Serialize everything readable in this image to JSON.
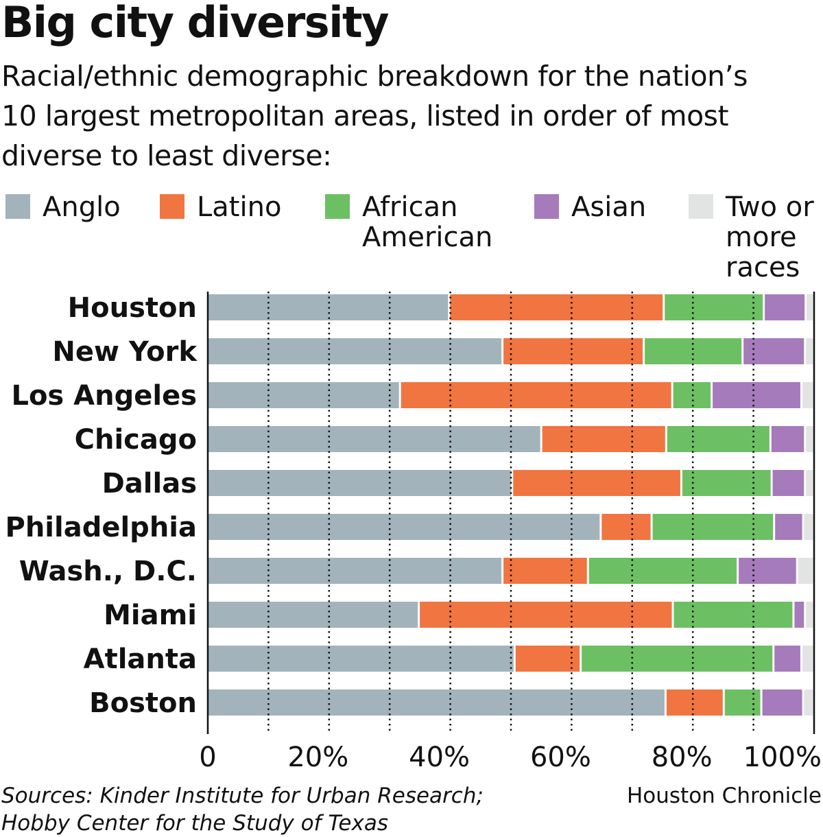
{
  "chart_data": {
    "type": "bar",
    "orientation": "horizontal",
    "stacked": true,
    "title": "Big city diversity",
    "subtitle": "Racial/ethnic demographic breakdown for the nation’s 10 largest metropolitan areas, listed in order of most diverse to least diverse:",
    "categories": [
      "Houston",
      "New York",
      "Los Angeles",
      "Chicago",
      "Dallas",
      "Philadelphia",
      "Wash., D.C.",
      "Miami",
      "Atlanta",
      "Boston"
    ],
    "series": [
      {
        "name": "Anglo",
        "color": "#a3b3bb",
        "values": [
          39.8,
          48.6,
          31.7,
          55.0,
          50.2,
          64.8,
          48.6,
          34.8,
          50.6,
          75.5
        ]
      },
      {
        "name": "Latino",
        "color": "#f07540",
        "values": [
          35.4,
          23.3,
          44.9,
          20.6,
          27.9,
          8.4,
          14.1,
          41.9,
          10.9,
          9.6
        ]
      },
      {
        "name": "African American",
        "color": "#6dbf63",
        "values": [
          16.5,
          16.3,
          6.5,
          17.2,
          14.9,
          20.2,
          24.7,
          19.9,
          31.8,
          6.2
        ]
      },
      {
        "name": "Asian",
        "color": "#a57bbb",
        "values": [
          6.9,
          10.3,
          14.8,
          5.7,
          5.5,
          4.8,
          9.8,
          1.9,
          4.6,
          6.9
        ]
      },
      {
        "name": "Two or more races",
        "color": "#e2e3e3",
        "values": [
          1.4,
          1.5,
          2.1,
          1.5,
          1.5,
          1.8,
          2.8,
          1.5,
          2.1,
          1.8
        ]
      }
    ],
    "xlim": [
      0,
      100
    ],
    "x_ticks": [
      "0",
      "20%",
      "40%",
      "60%",
      "80%",
      "100%"
    ],
    "x_tick_values": [
      0,
      20,
      40,
      60,
      80,
      100
    ],
    "grid": "dotted vertical every 10%",
    "legend": "top"
  },
  "legend_labels": [
    "Anglo",
    "Latino",
    "African American",
    "Asian",
    "Two or more races"
  ],
  "footer": {
    "source": "Sources: Kinder Institute for Urban Research; Hobby Center for the Study of Texas",
    "credit": "Houston Chronicle"
  }
}
